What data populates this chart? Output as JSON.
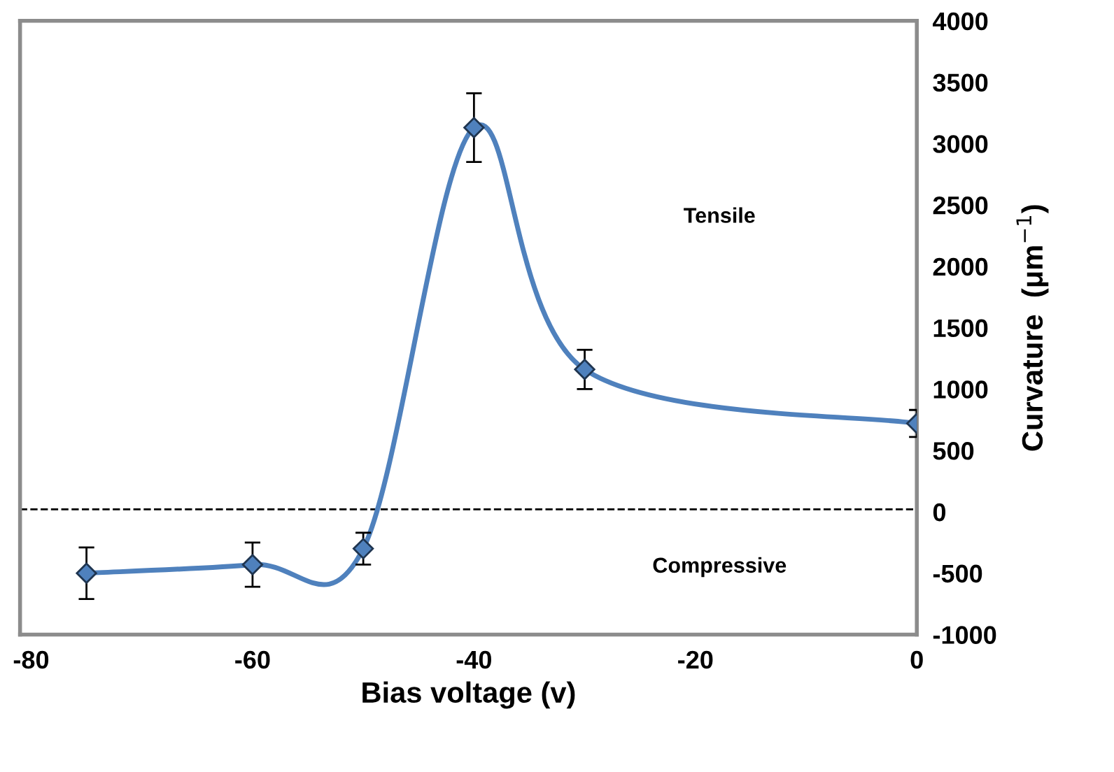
{
  "chart_data": {
    "type": "line",
    "xlabel": "Bias voltage (v)",
    "ylabel": "Curvature  (μm$^{−1}$)",
    "x": [
      -75,
      -60,
      -50,
      -40,
      -30,
      0
    ],
    "series": [
      {
        "color": "#4f81bd",
        "values": [
          -500,
          -430,
          -300,
          3130,
          1160,
          720
        ],
        "errors": [
          210,
          180,
          130,
          280,
          160,
          110
        ]
      }
    ],
    "marker": "diamond",
    "line_style": "solid",
    "xlim": [
      -81,
      0
    ],
    "xticks": [
      -80,
      -60,
      -40,
      -20,
      0
    ],
    "ylim": [
      -1000,
      4000
    ],
    "yticks": [
      -1000,
      -500,
      0,
      500,
      1000,
      1500,
      2000,
      2500,
      3000,
      3500,
      4000
    ],
    "ref_lines": [
      {
        "axis": "y",
        "value": 20,
        "color": "#000000",
        "line_style": "dashed"
      }
    ],
    "annotations": [
      "Tensile",
      "Compressive"
    ],
    "grid": false,
    "legend": false
  }
}
